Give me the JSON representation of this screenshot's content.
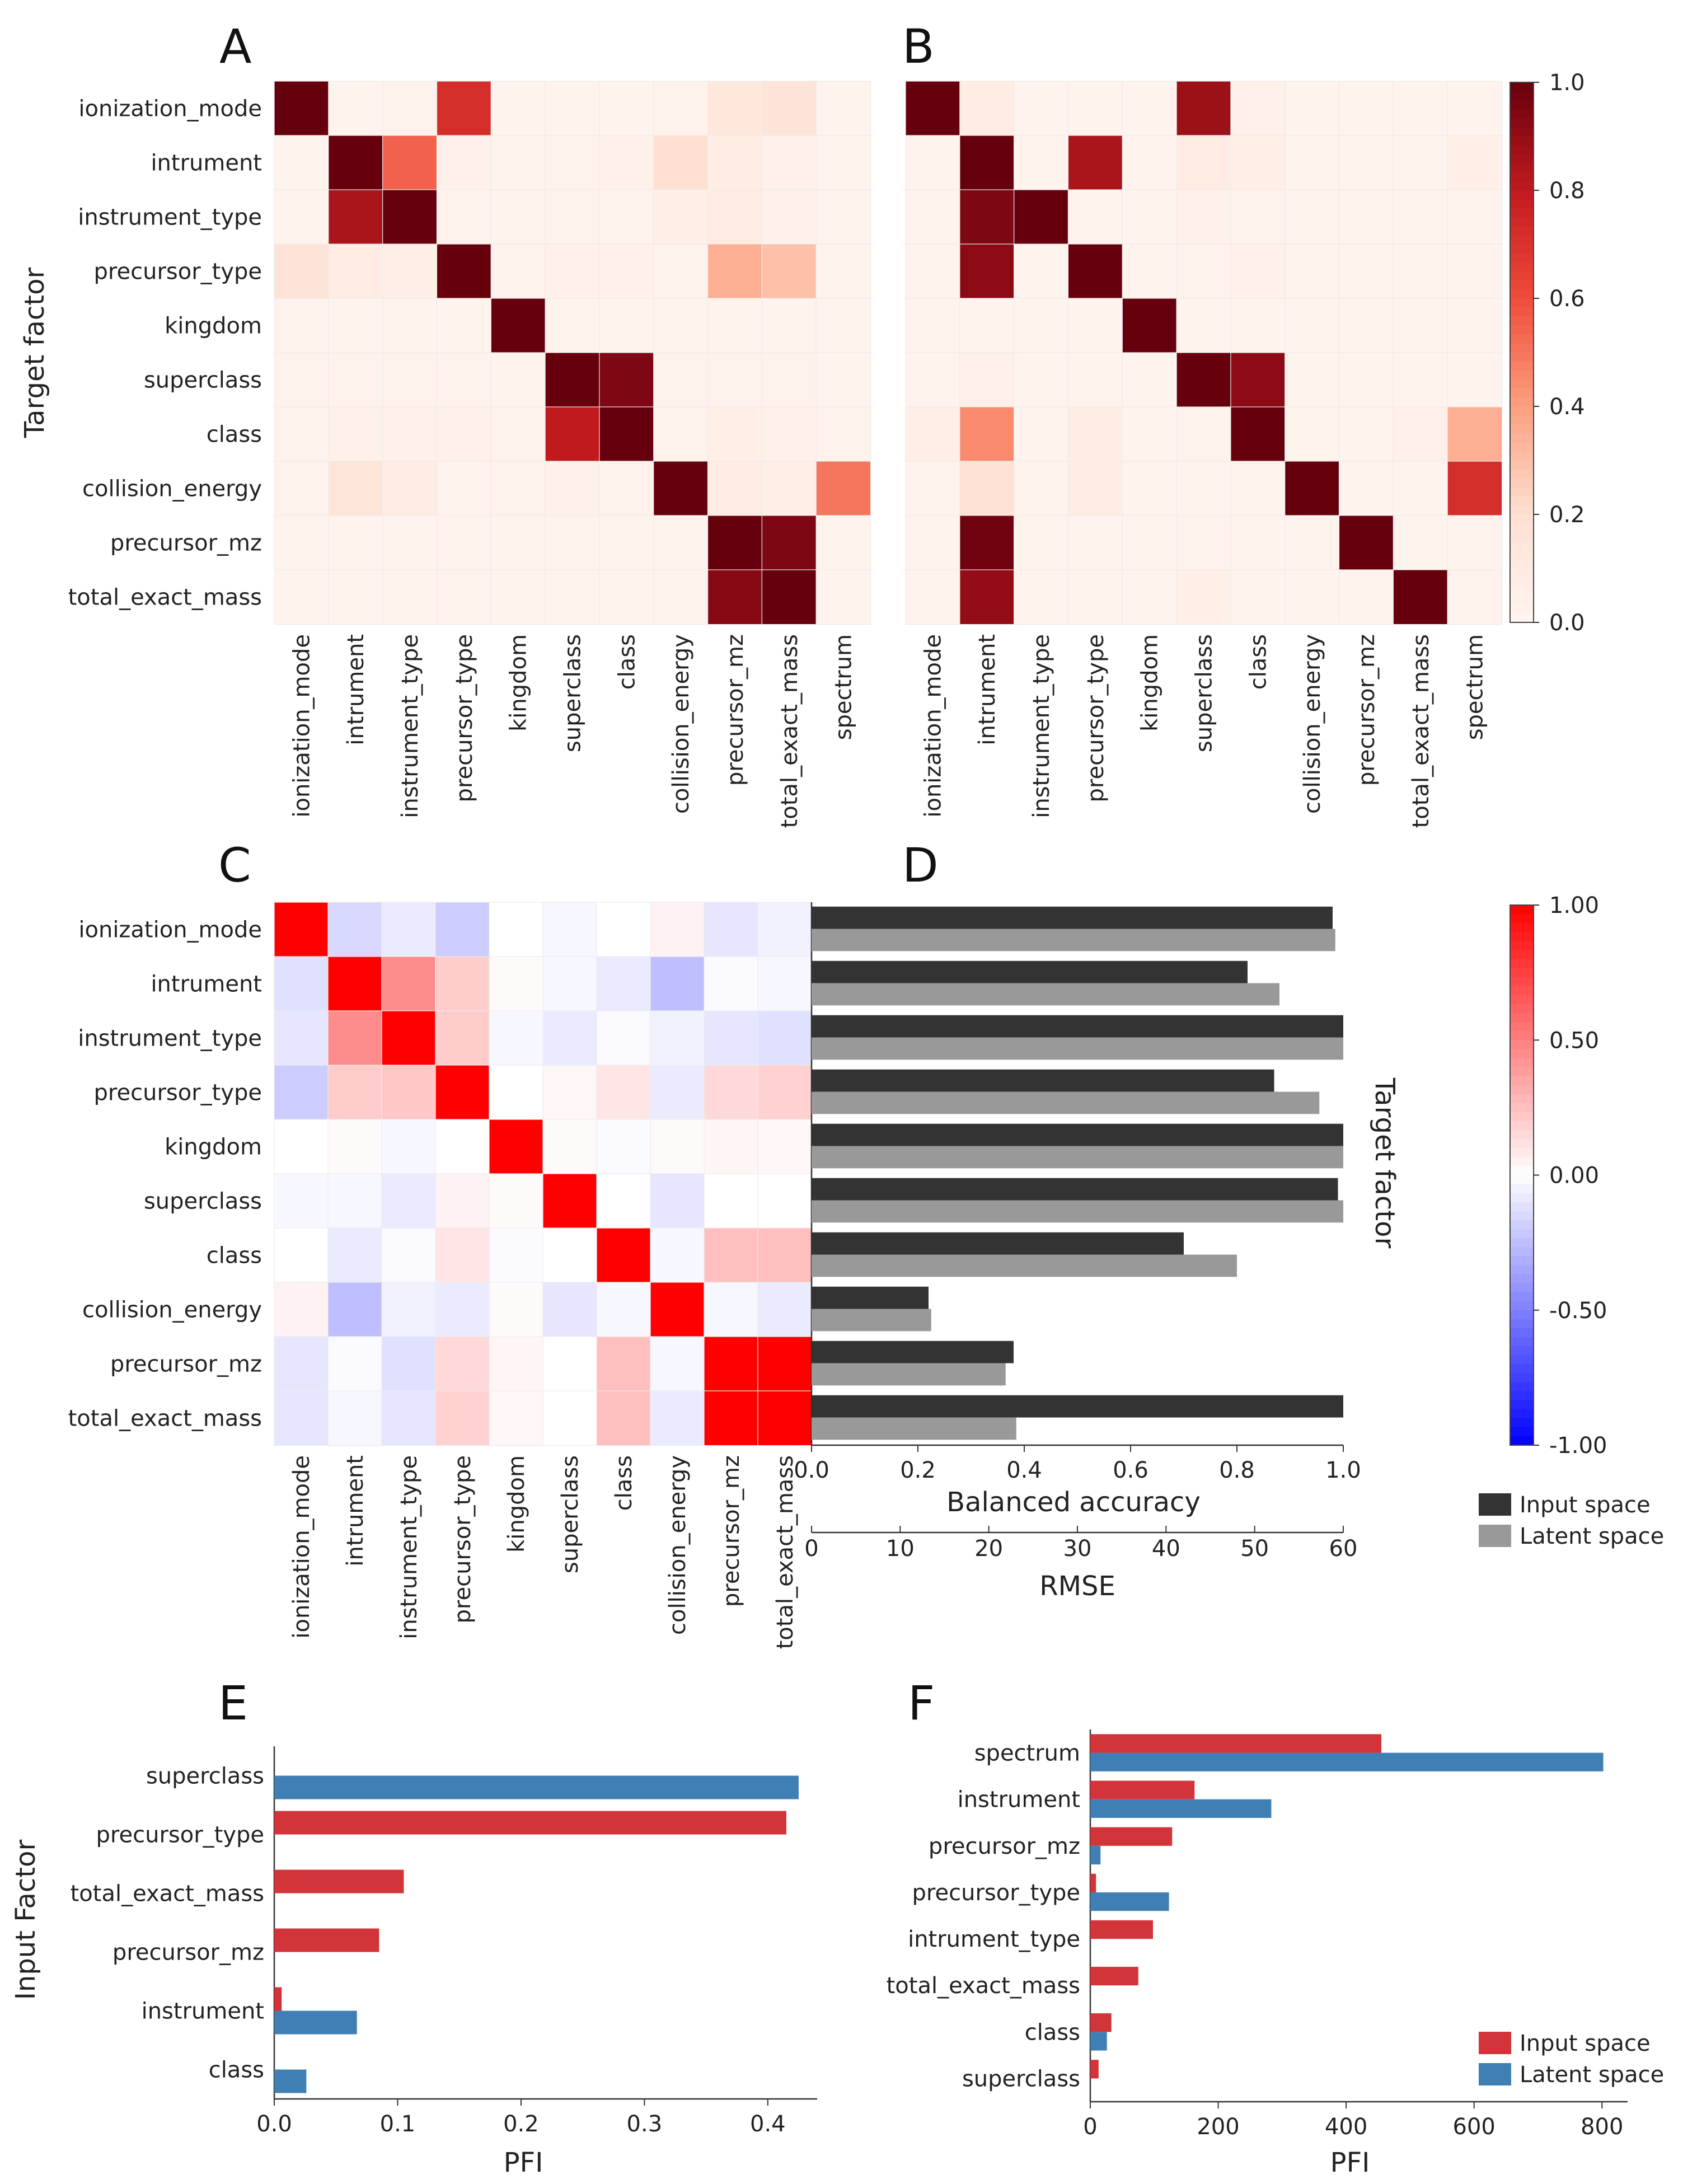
{
  "figure": {
    "panel_letters": [
      "A",
      "B",
      "C",
      "D",
      "E",
      "F"
    ],
    "heatmap_labels": [
      "ionization_mode",
      "intrument",
      "instrument_type",
      "precursor_type",
      "kingdom",
      "superclass",
      "class",
      "collision_energy",
      "precursor_mz",
      "total_exact_mass"
    ],
    "heatmap_x_labels": [
      "ionization_mode",
      "intrument",
      "instrument_type",
      "precursor_type",
      "kingdom",
      "superclass",
      "class",
      "collision_energy",
      "precursor_mz",
      "total_exact_mass",
      "spectrum"
    ],
    "colors": {
      "dark": "#67000d",
      "mid": "#ef3b2c",
      "light": "#fee0d2",
      "input_bar_d": "#333333",
      "latent_bar_d": "#999999",
      "input_bar_ef": "#d2343a",
      "latent_bar_ef": "#3f7fb4"
    }
  },
  "chart_data": [
    {
      "type": "heatmap",
      "panel": "A",
      "ylabel": "Target factor",
      "rows": [
        "ionization_mode",
        "intrument",
        "instrument_type",
        "precursor_type",
        "kingdom",
        "superclass",
        "class",
        "collision_energy",
        "precursor_mz",
        "total_exact_mass"
      ],
      "columns": [
        "ionization_mode",
        "intrument",
        "instrument_type",
        "precursor_type",
        "kingdom",
        "superclass",
        "class",
        "collision_energy",
        "precursor_mz",
        "total_exact_mass",
        "spectrum"
      ],
      "values": [
        [
          1.0,
          0.02,
          0.03,
          0.72,
          0.02,
          0.02,
          0.02,
          0.03,
          0.12,
          0.16,
          0.02
        ],
        [
          0.02,
          1.0,
          0.55,
          0.05,
          0.02,
          0.03,
          0.04,
          0.2,
          0.08,
          0.05,
          0.02
        ],
        [
          0.02,
          0.85,
          1.0,
          0.03,
          0.02,
          0.03,
          0.03,
          0.06,
          0.1,
          0.04,
          0.02
        ],
        [
          0.16,
          0.08,
          0.06,
          1.0,
          0.03,
          0.04,
          0.04,
          0.03,
          0.35,
          0.3,
          0.02
        ],
        [
          0.03,
          0.02,
          0.02,
          0.02,
          1.0,
          0.02,
          0.02,
          0.02,
          0.02,
          0.02,
          0.02
        ],
        [
          0.03,
          0.03,
          0.03,
          0.03,
          0.02,
          1.0,
          0.95,
          0.03,
          0.03,
          0.03,
          0.02
        ],
        [
          0.03,
          0.05,
          0.04,
          0.04,
          0.03,
          0.8,
          1.0,
          0.03,
          0.06,
          0.05,
          0.03
        ],
        [
          0.03,
          0.15,
          0.08,
          0.03,
          0.03,
          0.04,
          0.03,
          1.0,
          0.08,
          0.06,
          0.5
        ],
        [
          0.02,
          0.02,
          0.02,
          0.03,
          0.02,
          0.02,
          0.02,
          0.02,
          1.0,
          0.95,
          0.02
        ],
        [
          0.02,
          0.02,
          0.02,
          0.03,
          0.02,
          0.02,
          0.02,
          0.02,
          0.93,
          1.0,
          0.02
        ]
      ],
      "colorbar": {
        "range": [
          0.0,
          1.0
        ],
        "ticks": [
          "0.0",
          "0.2",
          "0.4",
          "0.6",
          "0.8",
          "1.0"
        ]
      }
    },
    {
      "type": "heatmap",
      "panel": "B",
      "rows": [
        "ionization_mode",
        "intrument",
        "instrument_type",
        "precursor_type",
        "kingdom",
        "superclass",
        "class",
        "collision_energy",
        "precursor_mz",
        "total_exact_mass"
      ],
      "columns": [
        "ionization_mode",
        "intrument",
        "instrument_type",
        "precursor_type",
        "kingdom",
        "superclass",
        "class",
        "collision_energy",
        "precursor_mz",
        "total_exact_mass",
        "spectrum"
      ],
      "values": [
        [
          1.0,
          0.08,
          0.02,
          0.02,
          0.02,
          0.88,
          0.05,
          0.02,
          0.02,
          0.02,
          0.02
        ],
        [
          0.02,
          1.0,
          0.02,
          0.85,
          0.02,
          0.1,
          0.06,
          0.02,
          0.02,
          0.02,
          0.06
        ],
        [
          0.02,
          0.95,
          1.0,
          0.02,
          0.02,
          0.05,
          0.03,
          0.02,
          0.02,
          0.02,
          0.02
        ],
        [
          0.02,
          0.92,
          0.02,
          1.0,
          0.02,
          0.03,
          0.05,
          0.02,
          0.02,
          0.02,
          0.02
        ],
        [
          0.02,
          0.02,
          0.02,
          0.02,
          1.0,
          0.02,
          0.02,
          0.02,
          0.02,
          0.02,
          0.02
        ],
        [
          0.02,
          0.05,
          0.02,
          0.02,
          0.02,
          1.0,
          0.92,
          0.02,
          0.02,
          0.02,
          0.02
        ],
        [
          0.06,
          0.45,
          0.02,
          0.08,
          0.02,
          0.03,
          1.0,
          0.02,
          0.02,
          0.04,
          0.35
        ],
        [
          0.02,
          0.18,
          0.02,
          0.08,
          0.02,
          0.02,
          0.02,
          1.0,
          0.02,
          0.02,
          0.72
        ],
        [
          0.02,
          0.98,
          0.02,
          0.02,
          0.02,
          0.03,
          0.02,
          0.02,
          1.0,
          0.02,
          0.02
        ],
        [
          0.02,
          0.9,
          0.02,
          0.02,
          0.02,
          0.06,
          0.02,
          0.02,
          0.02,
          1.0,
          0.03
        ]
      ],
      "colorbar": {
        "range": [
          0.0,
          1.0
        ],
        "ticks": [
          "0.0",
          "0.2",
          "0.4",
          "0.6",
          "0.8",
          "1.0"
        ]
      }
    },
    {
      "type": "heatmap",
      "panel": "C",
      "rows": [
        "ionization_mode",
        "intrument",
        "instrument_type",
        "precursor_type",
        "kingdom",
        "superclass",
        "class",
        "collision_energy",
        "precursor_mz",
        "total_exact_mass"
      ],
      "columns": [
        "ionization_mode",
        "intrument",
        "instrument_type",
        "precursor_type",
        "kingdom",
        "superclass",
        "class",
        "collision_energy",
        "precursor_mz",
        "total_exact_mass"
      ],
      "values": [
        [
          1.0,
          -0.15,
          -0.08,
          -0.2,
          0.0,
          -0.03,
          0.0,
          0.05,
          -0.1,
          -0.05
        ],
        [
          -0.12,
          1.0,
          0.45,
          0.2,
          0.02,
          -0.03,
          -0.08,
          -0.25,
          -0.02,
          -0.03
        ],
        [
          -0.1,
          0.45,
          1.0,
          0.2,
          -0.03,
          -0.08,
          -0.02,
          -0.05,
          -0.1,
          -0.12
        ],
        [
          -0.2,
          0.2,
          0.22,
          1.0,
          0.0,
          0.03,
          0.1,
          -0.08,
          0.15,
          0.18
        ],
        [
          0.0,
          0.02,
          -0.03,
          0.0,
          1.0,
          0.02,
          -0.02,
          0.02,
          0.04,
          0.03
        ],
        [
          -0.03,
          -0.03,
          -0.08,
          0.05,
          0.02,
          1.0,
          0.0,
          -0.1,
          0.0,
          0.0
        ],
        [
          0.0,
          -0.08,
          -0.02,
          0.1,
          -0.02,
          0.0,
          1.0,
          -0.03,
          0.25,
          0.25
        ],
        [
          0.05,
          -0.25,
          -0.05,
          -0.08,
          0.02,
          -0.1,
          -0.03,
          1.0,
          -0.03,
          -0.08
        ],
        [
          -0.1,
          -0.02,
          -0.12,
          0.15,
          0.04,
          0.0,
          0.25,
          -0.03,
          1.0,
          1.0
        ],
        [
          -0.1,
          -0.03,
          -0.1,
          0.18,
          0.03,
          0.0,
          0.25,
          -0.08,
          1.0,
          1.0
        ]
      ],
      "colorbar": {
        "range": [
          -1.0,
          1.0
        ],
        "ticks": [
          "-1.00",
          "-0.50",
          "0.00",
          "0.50",
          "1.00"
        ]
      }
    },
    {
      "type": "bar",
      "panel": "D",
      "orientation": "horizontal",
      "ylabel": "Target factor",
      "categories": [
        "ionization_mode",
        "intrument",
        "instrument_type",
        "precursor_type",
        "kingdom",
        "superclass",
        "class",
        "collision_energy",
        "precursor_mz",
        "total_exact_mass"
      ],
      "series": [
        {
          "name": "Input space",
          "values": [
            0.98,
            0.82,
            1.0,
            0.87,
            1.0,
            0.99,
            0.7,
            0.22,
            0.38,
            1.0
          ]
        },
        {
          "name": "Latent space",
          "values": [
            0.985,
            0.88,
            1.0,
            0.955,
            1.0,
            1.0,
            0.8,
            0.225,
            0.365,
            0.385
          ]
        }
      ],
      "xlabel": "Balanced accuracy",
      "xlim": [
        0.0,
        1.0
      ],
      "x_ticks": [
        "0.0",
        "0.2",
        "0.4",
        "0.6",
        "0.8",
        "1.0"
      ],
      "secondary_xlabel": "RMSE",
      "secondary_xlim": [
        0,
        60
      ],
      "secondary_x_ticks": [
        "0",
        "10",
        "20",
        "30",
        "40",
        "50",
        "60"
      ]
    },
    {
      "type": "bar",
      "panel": "E",
      "orientation": "horizontal",
      "ylabel": "Input Factor",
      "categories": [
        "superclass",
        "precursor_type",
        "total_exact_mass",
        "precursor_mz",
        "instrument",
        "class"
      ],
      "series": [
        {
          "name": "Input space",
          "values": [
            0.0,
            0.415,
            0.105,
            0.085,
            0.006,
            0.0
          ]
        },
        {
          "name": "Latent space",
          "values": [
            0.425,
            0.0,
            0.0,
            0.0,
            0.067,
            0.026
          ]
        }
      ],
      "xlabel": "PFI",
      "xlim": [
        0.0,
        0.44
      ],
      "x_ticks": [
        "0.0",
        "0.1",
        "0.2",
        "0.3",
        "0.4"
      ]
    },
    {
      "type": "bar",
      "panel": "F",
      "orientation": "horizontal",
      "categories": [
        "spectrum",
        "instrument",
        "precursor_mz",
        "precursor_type",
        "intrument_type",
        "total_exact_mass",
        "class",
        "superclass"
      ],
      "series": [
        {
          "name": "Input space",
          "values": [
            455,
            163,
            128,
            9,
            98,
            75,
            33,
            13
          ]
        },
        {
          "name": "Latent space",
          "values": [
            802,
            283,
            16,
            123,
            0,
            0,
            26,
            0
          ]
        }
      ],
      "legend": [
        "Input space",
        "Latent space"
      ],
      "xlabel": "PFI",
      "xlim": [
        0,
        840
      ],
      "x_ticks": [
        "0",
        "200",
        "400",
        "600",
        "800"
      ]
    }
  ]
}
